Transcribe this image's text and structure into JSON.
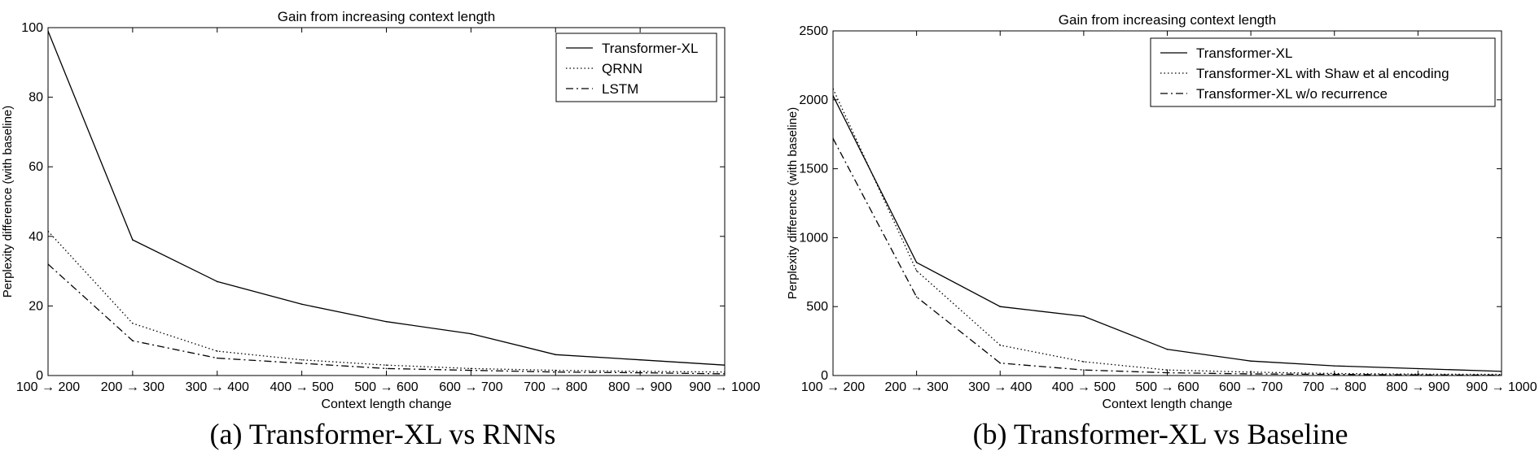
{
  "chart_data": [
    {
      "type": "line",
      "title": "Gain from increasing context length",
      "xlabel": "Context length change",
      "ylabel": "Perplexity difference (with baseline)",
      "categories": [
        "100 → 200",
        "200 → 300",
        "300 → 400",
        "400 → 500",
        "500 → 600",
        "600 → 700",
        "700 → 800",
        "800 → 900",
        "900 → 1000"
      ],
      "ylim": [
        0,
        100
      ],
      "yticks": [
        "0",
        "20",
        "40",
        "60",
        "80",
        "100"
      ],
      "legend_position": "top-right",
      "grid": false,
      "series": [
        {
          "name": "Transformer-XL",
          "dash": "solid",
          "values": [
            99,
            39,
            27,
            20.5,
            15.5,
            12,
            6,
            4.5,
            3
          ]
        },
        {
          "name": "QRNN",
          "dash": "dotted",
          "values": [
            41.5,
            15,
            7,
            4.5,
            3,
            2,
            1.5,
            1.2,
            1
          ]
        },
        {
          "name": "LSTM",
          "dash": "dashdot",
          "values": [
            32,
            10,
            5,
            3.5,
            2,
            1.5,
            1,
            0.8,
            0.5
          ]
        }
      ],
      "caption": "(a) Transformer-XL vs RNNs"
    },
    {
      "type": "line",
      "title": "Gain from increasing context length",
      "xlabel": "Context length change",
      "ylabel": "Perplexity difference (with baseline)",
      "categories": [
        "100 → 200",
        "200 → 300",
        "300 → 400",
        "400 → 500",
        "500 → 600",
        "600 → 700",
        "700 → 800",
        "800 → 900",
        "900 → 1000"
      ],
      "ylim": [
        0,
        2500
      ],
      "yticks": [
        "0",
        "500",
        "1000",
        "1500",
        "2000",
        "2500"
      ],
      "legend_position": "top-right",
      "grid": false,
      "series": [
        {
          "name": "Transformer-XL",
          "dash": "solid",
          "values": [
            2030,
            820,
            500,
            430,
            190,
            105,
            70,
            50,
            30
          ]
        },
        {
          "name": "Transformer-XL with Shaw et al encoding",
          "dash": "dotted",
          "values": [
            2080,
            760,
            220,
            100,
            40,
            25,
            15,
            10,
            8
          ]
        },
        {
          "name": "Transformer-XL w/o recurrence",
          "dash": "dashdot",
          "values": [
            1720,
            570,
            90,
            40,
            20,
            12,
            8,
            5,
            3
          ]
        }
      ],
      "caption": "(b) Transformer-XL vs Baseline"
    }
  ]
}
